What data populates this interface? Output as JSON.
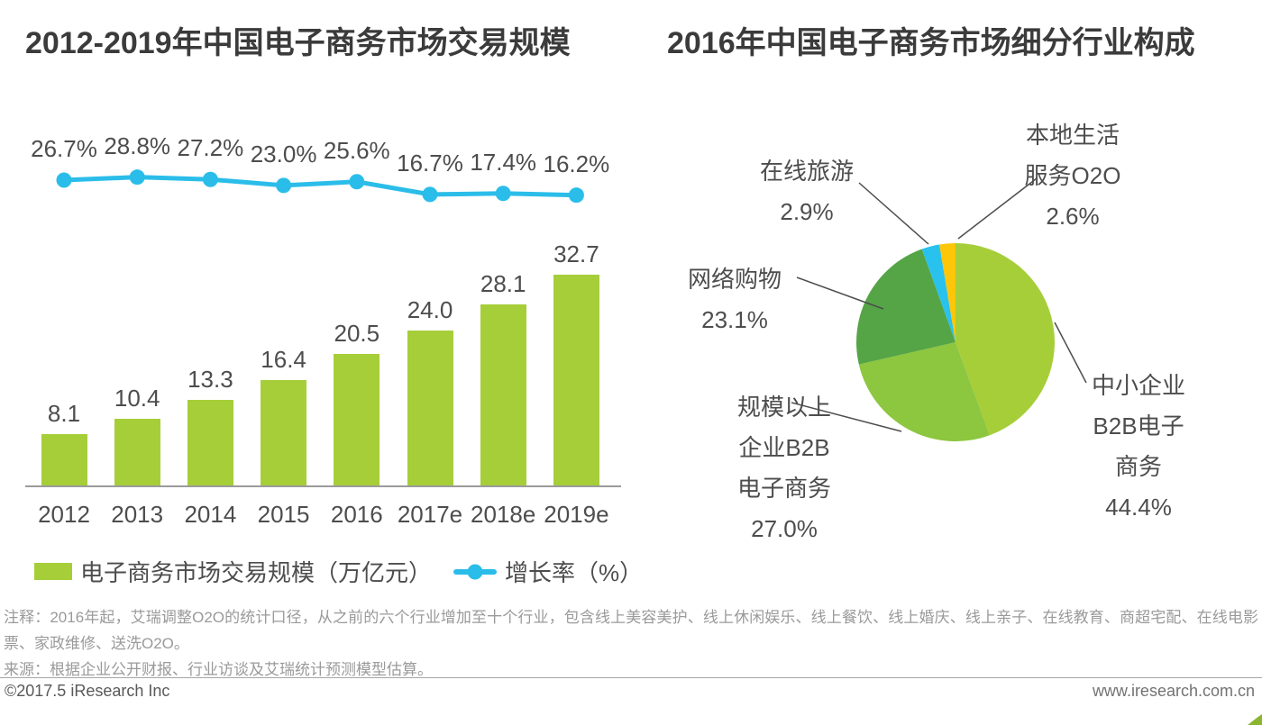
{
  "chart_data": [
    {
      "type": "bar",
      "title": "2012-2019年中国电子商务市场交易规模",
      "categories": [
        "2012",
        "2013",
        "2014",
        "2015",
        "2016",
        "2017e",
        "2018e",
        "2019e"
      ],
      "series": [
        {
          "name": "电子商务市场交易规模（万亿元）",
          "type": "bar",
          "values": [
            8.1,
            10.4,
            13.3,
            16.4,
            20.5,
            24.0,
            28.1,
            32.7
          ],
          "value_labels": [
            "8.1",
            "10.4",
            "13.3",
            "16.4",
            "20.5",
            "24.0",
            "28.1",
            "32.7"
          ],
          "unit": "万亿元",
          "color": "#a6ce39"
        },
        {
          "name": "增长率（%）",
          "type": "line",
          "values": [
            26.7,
            28.8,
            27.2,
            23.0,
            25.6,
            16.7,
            17.4,
            16.2
          ],
          "value_labels": [
            "26.7%",
            "28.8%",
            "27.2%",
            "23.0%",
            "25.6%",
            "16.7%",
            "17.4%",
            "16.2%"
          ],
          "unit": "%",
          "color": "#2bbde9"
        }
      ],
      "xlabel": "",
      "ylabel": "",
      "grid": false,
      "legend_position": "bottom",
      "value_labels_shown": true
    },
    {
      "type": "pie",
      "title": "2016年中国电子商务市场细分行业构成",
      "slices": [
        {
          "label": "中小企业B2B电子商务",
          "value": 44.4,
          "pct_label": "44.4%",
          "color": "#a6ce39",
          "label_lines": [
            "中小企业",
            "B2B电子",
            "商务",
            "44.4%"
          ]
        },
        {
          "label": "规模以上企业B2B电子商务",
          "value": 27.0,
          "pct_label": "27.0%",
          "color": "#8dc63f",
          "label_lines": [
            "规模以上",
            "企业B2B",
            "电子商务",
            "27.0%"
          ]
        },
        {
          "label": "网络购物",
          "value": 23.1,
          "pct_label": "23.1%",
          "color": "#55a546",
          "label_lines": [
            "网络购物",
            "23.1%"
          ]
        },
        {
          "label": "在线旅游",
          "value": 2.9,
          "pct_label": "2.9%",
          "color": "#29c1ee",
          "label_lines": [
            "在线旅游",
            "2.9%"
          ]
        },
        {
          "label": "本地生活服务O2O",
          "value": 2.6,
          "pct_label": "2.6%",
          "color": "#fdc608",
          "label_lines": [
            "本地生活",
            "服务O2O",
            "2.6%"
          ]
        }
      ],
      "start_angle_deg": 0,
      "direction": "clockwise",
      "legend_position": "none"
    }
  ],
  "colors": {
    "bar_green": "#a6ce39",
    "line_cyan": "#2bbde9",
    "pie_green_light": "#a6ce39",
    "pie_green_mid": "#8dc63f",
    "pie_green_dark": "#55a546",
    "pie_cyan": "#29c1ee",
    "pie_yellow": "#fdc608",
    "axis_gray": "#9b9b9b",
    "leader_line_gray": "#4d4d4d"
  },
  "footer": {
    "note": "注释：2016年起，艾瑞调整O2O的统计口径，从之前的六个行业增加至十个行业，包含线上美容美护、线上休闲娱乐、线上餐饮、线上婚庆、线上亲子、在线教育、商超宅配、在线电影票、家政维修、送洗O2O。",
    "source": "来源：根据企业公开财报、行业访谈及艾瑞统计预测模型估算。",
    "copyright": "©2017.5 iResearch Inc",
    "website": "www.iresearch.com.cn"
  }
}
